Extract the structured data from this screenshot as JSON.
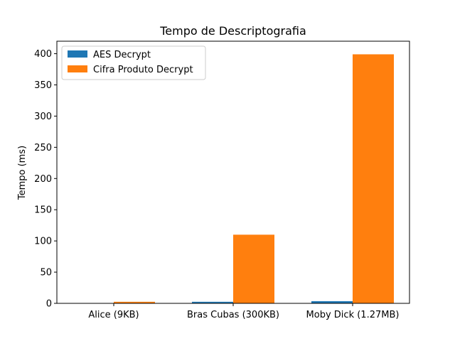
{
  "chart_data": {
    "type": "bar",
    "title": "Tempo de Descriptografia",
    "xlabel": "",
    "ylabel": "Tempo (ms)",
    "categories": [
      "Alice (9KB)",
      "Bras Cubas (300KB)",
      "Moby Dick (1.27MB)"
    ],
    "series": [
      {
        "name": "AES Decrypt",
        "color": "#1f77b4",
        "values": [
          0.5,
          2.5,
          3.5
        ]
      },
      {
        "name": "Cifra Produto Decrypt",
        "color": "#ff7f0e",
        "values": [
          2.5,
          110,
          399
        ]
      }
    ],
    "ylim": [
      0,
      420
    ],
    "yticks": [
      0,
      50,
      100,
      150,
      200,
      250,
      300,
      350,
      400
    ],
    "grid": false,
    "legend_position": "upper-left"
  }
}
